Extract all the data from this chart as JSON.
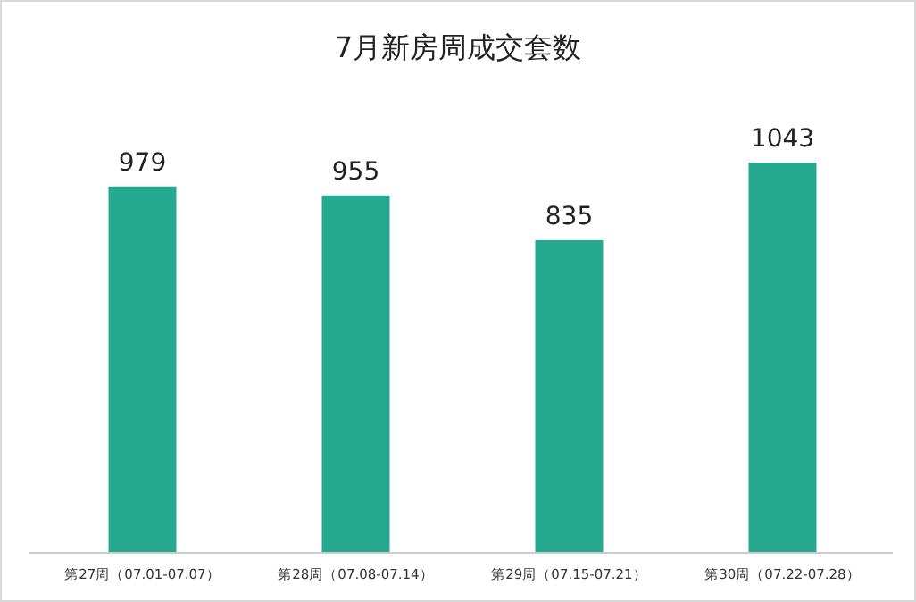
{
  "chart_data": {
    "type": "bar",
    "title": "7月新房周成交套数",
    "categories": [
      "第27周（07.01-07.07）",
      "第28周（07.08-07.14）",
      "第29周（07.15-07.21）",
      "第30周（07.22-07.28）"
    ],
    "values": [
      979,
      955,
      835,
      1043
    ],
    "color": "#26a98f",
    "data_labels": true
  }
}
